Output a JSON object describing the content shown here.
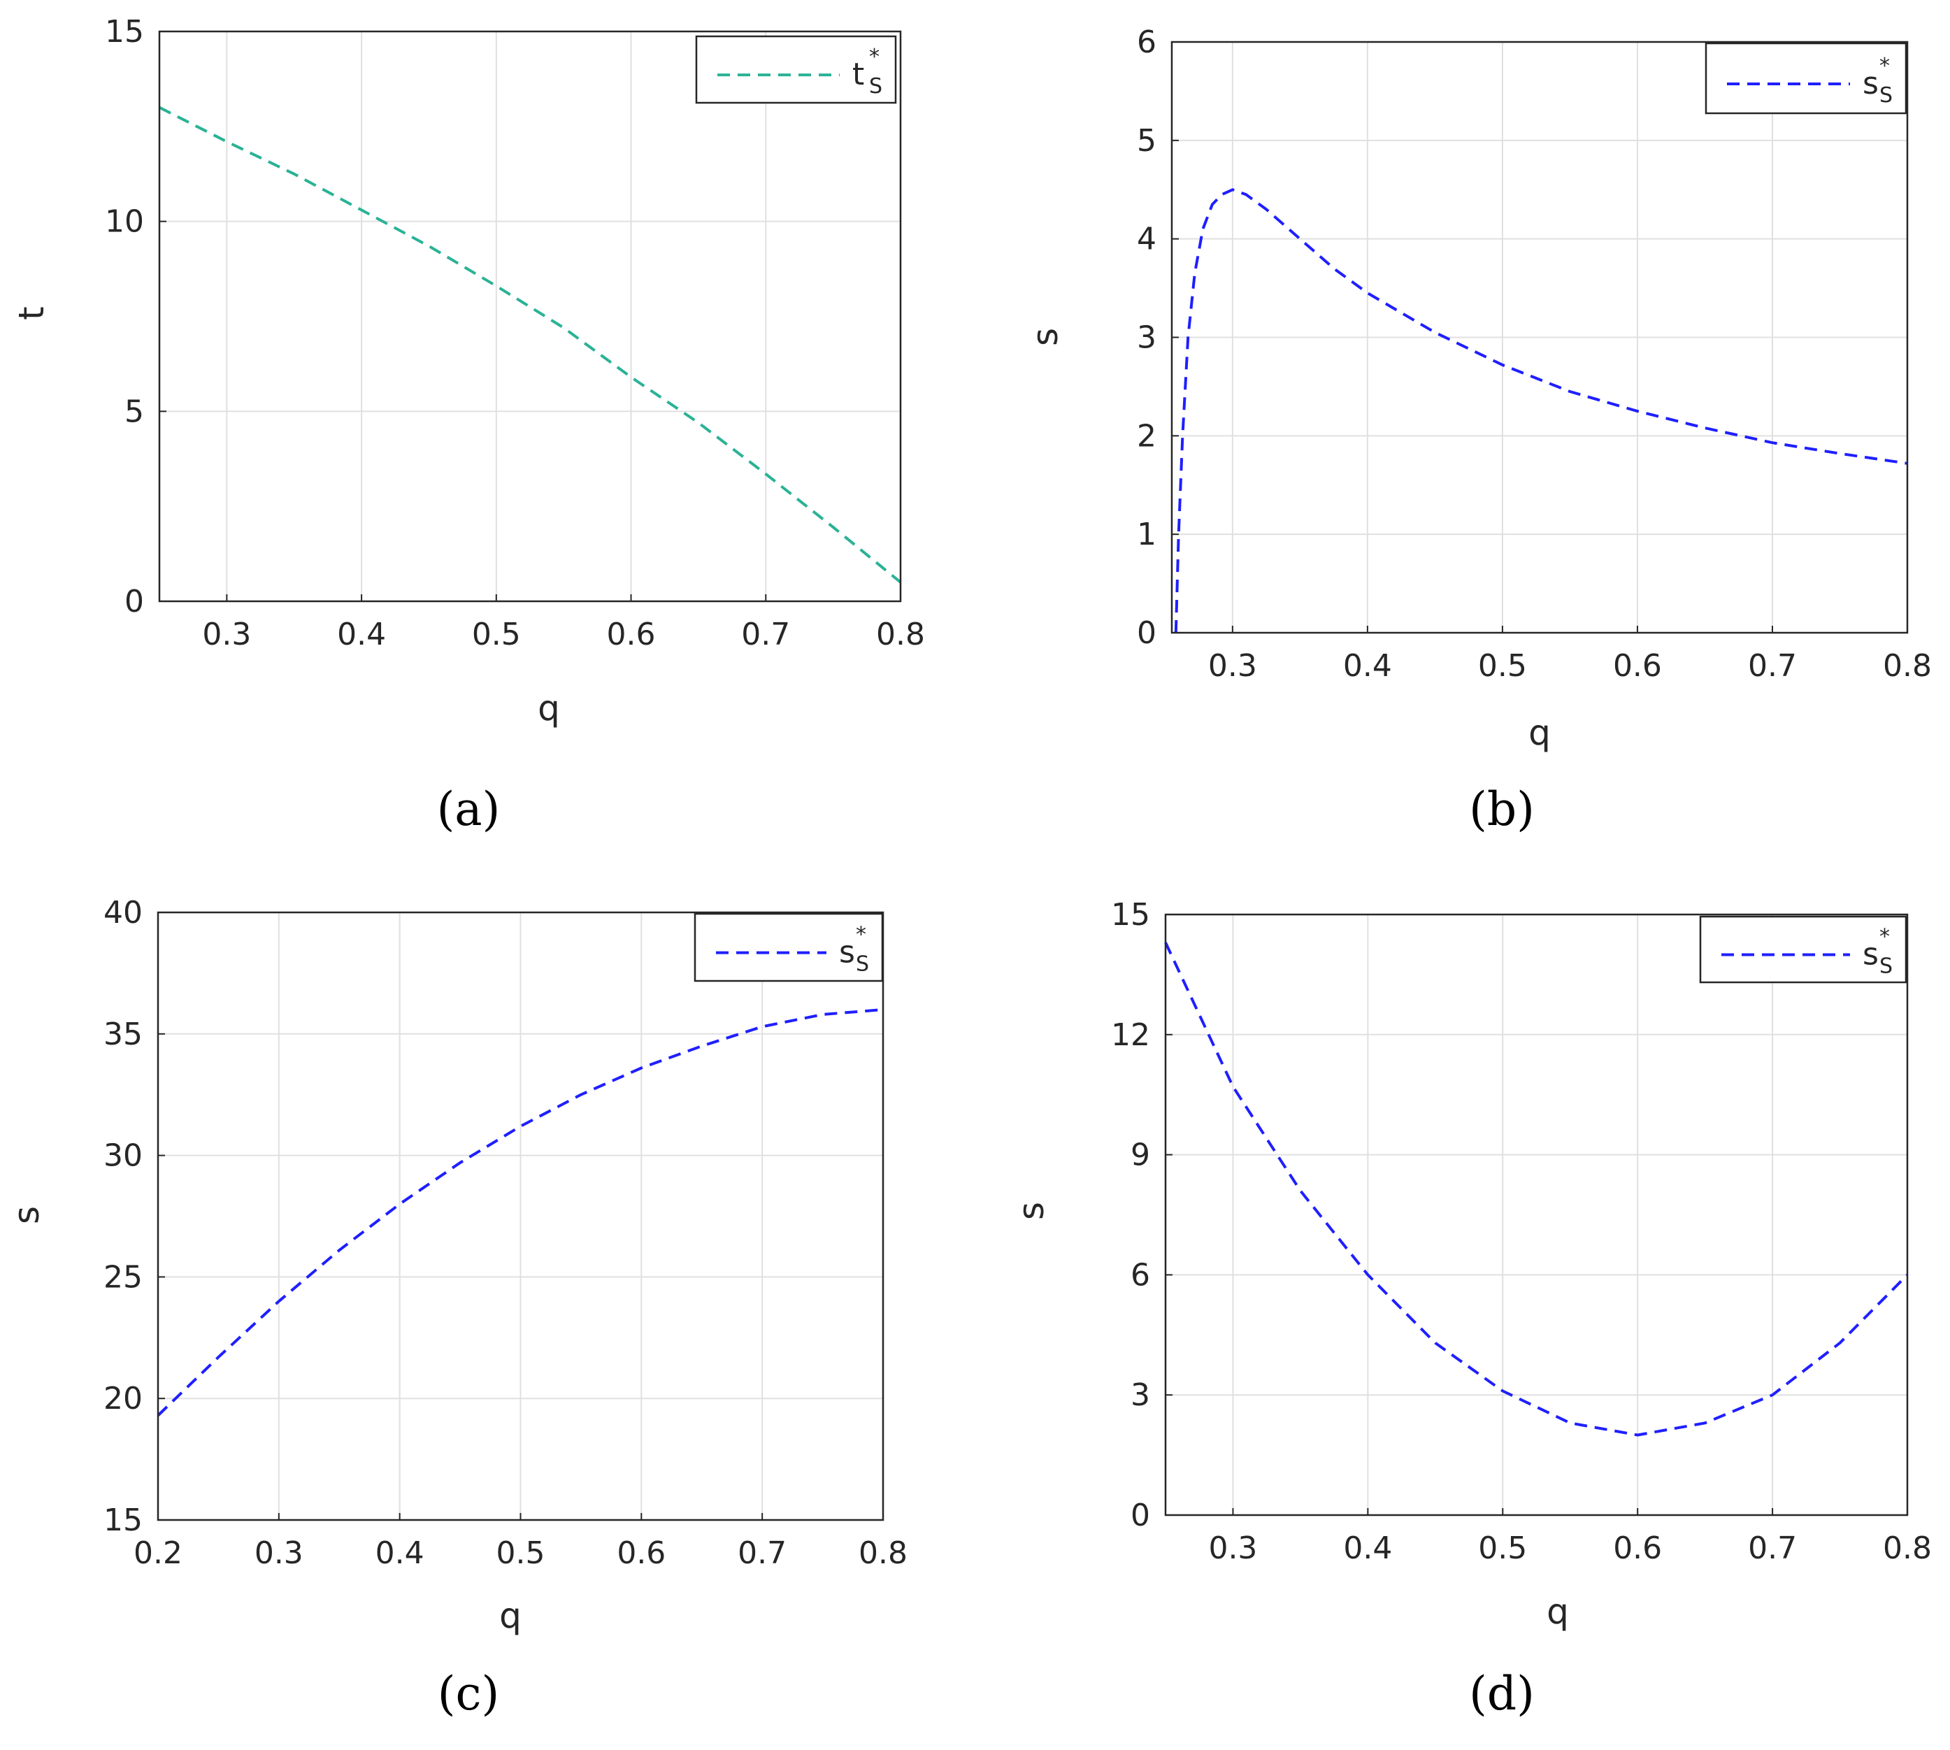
{
  "chart_data": [
    {
      "panel": "(a)",
      "type": "line",
      "xlabel": "q",
      "ylabel": "t",
      "xlim": [
        0.25,
        0.8
      ],
      "ylim": [
        0,
        15
      ],
      "xticks": [
        0.3,
        0.4,
        0.5,
        0.6,
        0.7,
        0.8
      ],
      "yticks": [
        0,
        5,
        10,
        15
      ],
      "xtick_labels": [
        "0.3",
        "0.4",
        "0.5",
        "0.6",
        "0.7",
        "0.8"
      ],
      "ytick_labels": [
        "0",
        "5",
        "10",
        "15"
      ],
      "grid": true,
      "legend_position": "top-right",
      "series": [
        {
          "name": "t",
          "name_sub": "S",
          "name_sup": "*",
          "style": "dashed",
          "color": "#2ab295",
          "x": [
            0.25,
            0.3,
            0.35,
            0.4,
            0.45,
            0.5,
            0.55,
            0.6,
            0.65,
            0.7,
            0.75,
            0.8
          ],
          "y": [
            13.0,
            12.1,
            11.25,
            10.3,
            9.35,
            8.3,
            7.2,
            5.9,
            4.7,
            3.35,
            1.95,
            0.5
          ]
        }
      ]
    },
    {
      "panel": "(b)",
      "type": "line",
      "xlabel": "q",
      "ylabel": "s",
      "xlim": [
        0.255,
        0.8
      ],
      "ylim": [
        0,
        6
      ],
      "xticks": [
        0.3,
        0.4,
        0.5,
        0.6,
        0.7,
        0.8
      ],
      "yticks": [
        0,
        1,
        2,
        3,
        4,
        5,
        6
      ],
      "xtick_labels": [
        "0.3",
        "0.4",
        "0.5",
        "0.6",
        "0.7",
        "0.8"
      ],
      "ytick_labels": [
        "0",
        "1",
        "2",
        "3",
        "4",
        "5",
        "6"
      ],
      "grid": true,
      "legend_position": "top-right",
      "series": [
        {
          "name": "s",
          "name_sub": "S",
          "name_sup": "*",
          "style": "dashed",
          "color": "#1f1fff",
          "x": [
            0.258,
            0.26,
            0.263,
            0.267,
            0.272,
            0.278,
            0.285,
            0.292,
            0.3,
            0.31,
            0.325,
            0.35,
            0.375,
            0.4,
            0.45,
            0.5,
            0.55,
            0.6,
            0.65,
            0.7,
            0.75,
            0.8
          ],
          "y": [
            0.0,
            1.0,
            2.0,
            3.0,
            3.65,
            4.1,
            4.35,
            4.45,
            4.5,
            4.45,
            4.3,
            4.0,
            3.7,
            3.45,
            3.05,
            2.72,
            2.45,
            2.25,
            2.08,
            1.93,
            1.82,
            1.72
          ]
        }
      ]
    },
    {
      "panel": "(c)",
      "type": "line",
      "xlabel": "q",
      "ylabel": "s",
      "xlim": [
        0.2,
        0.8
      ],
      "ylim": [
        15,
        40
      ],
      "xticks": [
        0.2,
        0.3,
        0.4,
        0.5,
        0.6,
        0.7,
        0.8
      ],
      "yticks": [
        15,
        20,
        25,
        30,
        35,
        40
      ],
      "xtick_labels": [
        "0.2",
        "0.3",
        "0.4",
        "0.5",
        "0.6",
        "0.7",
        "0.8"
      ],
      "ytick_labels": [
        "15",
        "20",
        "25",
        "30",
        "35",
        "40"
      ],
      "grid": true,
      "legend_position": "top-right",
      "series": [
        {
          "name": "s",
          "name_sub": "S",
          "name_sup": "*",
          "style": "dashed",
          "color": "#1f1fff",
          "x": [
            0.2,
            0.25,
            0.3,
            0.35,
            0.4,
            0.45,
            0.5,
            0.55,
            0.6,
            0.65,
            0.7,
            0.75,
            0.8
          ],
          "y": [
            19.3,
            21.7,
            24.0,
            26.1,
            28.0,
            29.7,
            31.2,
            32.5,
            33.6,
            34.5,
            35.3,
            35.8,
            36.0
          ]
        }
      ]
    },
    {
      "panel": "(d)",
      "type": "line",
      "xlabel": "q",
      "ylabel": "s",
      "xlim": [
        0.25,
        0.8
      ],
      "ylim": [
        0,
        15
      ],
      "xticks": [
        0.3,
        0.4,
        0.5,
        0.6,
        0.7,
        0.8
      ],
      "yticks": [
        0,
        3,
        6,
        9,
        12,
        15
      ],
      "xtick_labels": [
        "0.3",
        "0.4",
        "0.5",
        "0.6",
        "0.7",
        "0.8"
      ],
      "ytick_labels": [
        "0",
        "3",
        "6",
        "9",
        "12",
        "15"
      ],
      "grid": true,
      "legend_position": "top-right",
      "series": [
        {
          "name": "s",
          "name_sub": "S",
          "name_sup": "*",
          "style": "dashed",
          "color": "#1f1fff",
          "x": [
            0.25,
            0.3,
            0.35,
            0.4,
            0.45,
            0.5,
            0.55,
            0.6,
            0.65,
            0.7,
            0.75,
            0.8
          ],
          "y": [
            14.3,
            10.7,
            8.1,
            6.0,
            4.3,
            3.1,
            2.3,
            2.0,
            2.3,
            3.0,
            4.3,
            6.0
          ]
        }
      ]
    }
  ]
}
